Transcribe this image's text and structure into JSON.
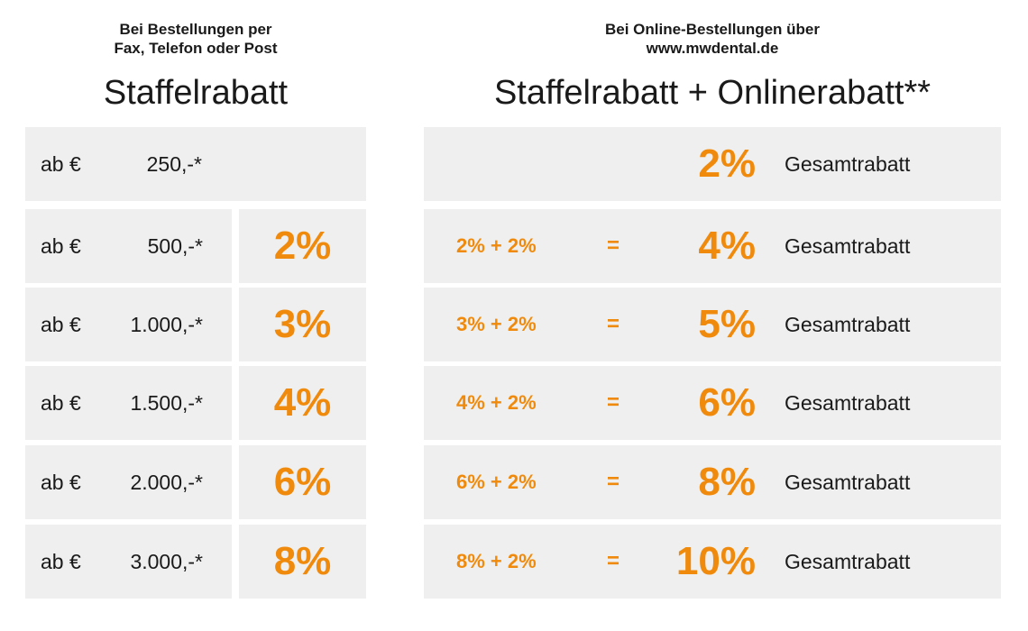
{
  "left": {
    "subtitle_line1": "Bei Bestellungen per",
    "subtitle_line2": "Fax, Telefon oder Post",
    "title": "Staffelrabatt",
    "rows": [
      {
        "prefix": "ab €",
        "amount": "250,-*",
        "discount": ""
      },
      {
        "prefix": "ab €",
        "amount": "500,-*",
        "discount": "2%"
      },
      {
        "prefix": "ab €",
        "amount": "1.000,-*",
        "discount": "3%"
      },
      {
        "prefix": "ab €",
        "amount": "1.500,-*",
        "discount": "4%"
      },
      {
        "prefix": "ab €",
        "amount": "2.000,-*",
        "discount": "6%"
      },
      {
        "prefix": "ab €",
        "amount": "3.000,-*",
        "discount": "8%"
      }
    ]
  },
  "right": {
    "subtitle_line1": "Bei Online-Bestellungen über",
    "subtitle_line2": "www.mwdental.de",
    "title": "Staffelrabatt + Onlinerabatt**",
    "rows": [
      {
        "sum": "",
        "equals": "",
        "total": "2%",
        "label": "Gesamtrabatt"
      },
      {
        "sum": "2% + 2%",
        "equals": "=",
        "total": "4%",
        "label": "Gesamtrabatt"
      },
      {
        "sum": "3% + 2%",
        "equals": "=",
        "total": "5%",
        "label": "Gesamtrabatt"
      },
      {
        "sum": "4% + 2%",
        "equals": "=",
        "total": "6%",
        "label": "Gesamtrabatt"
      },
      {
        "sum": "6% + 2%",
        "equals": "=",
        "total": "8%",
        "label": "Gesamtrabatt"
      },
      {
        "sum": "8% + 2%",
        "equals": "=",
        "total": "10%",
        "label": "Gesamtrabatt"
      }
    ]
  },
  "colors": {
    "accent": "#f08a0c",
    "cell_bg": "#efefef"
  }
}
